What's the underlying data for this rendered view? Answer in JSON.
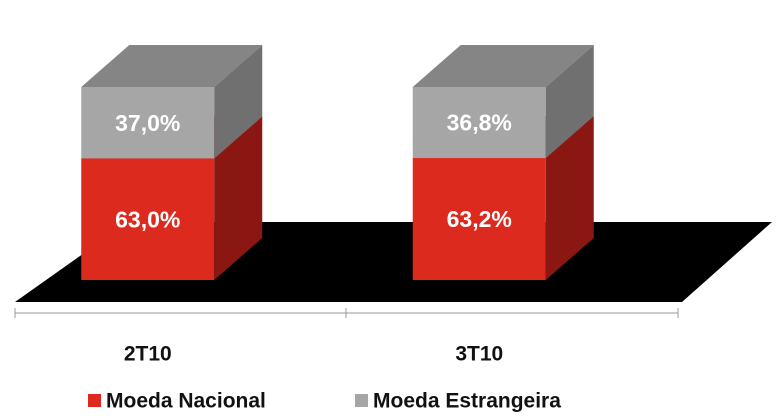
{
  "chart_data": {
    "type": "bar3d_stacked",
    "categories": [
      "2T10",
      "3T10"
    ],
    "series": [
      {
        "name": "Moeda Nacional",
        "color": "#dc2a1e",
        "side_color": "#8a1712",
        "values": [
          63.0,
          63.2
        ],
        "value_labels": [
          "63,0%",
          "63,2%"
        ]
      },
      {
        "name": "Moeda Estrangeira",
        "color": "#a6a6a6",
        "side_color": "#707070",
        "values": [
          37.0,
          36.8
        ],
        "value_labels": [
          "37,0%",
          "36,8%"
        ]
      }
    ]
  }
}
